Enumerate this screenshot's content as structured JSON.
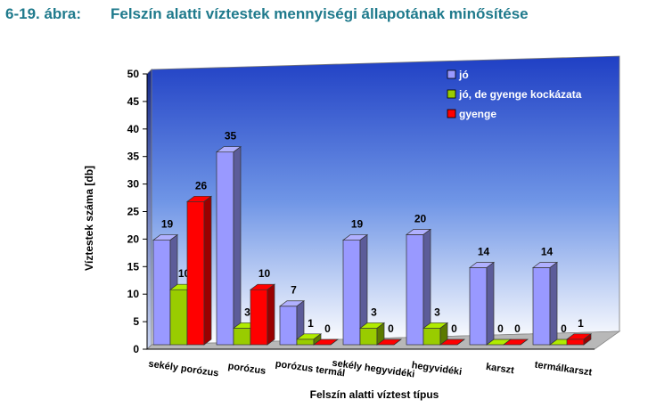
{
  "figure": {
    "number": "6-19. ábra:",
    "title": "Felszín alatti víztestek mennyiségi állapotának minősítése"
  },
  "chart_data": {
    "type": "bar",
    "title": "",
    "xlabel": "Felszín alatti víztest típus",
    "ylabel": "Víztestek száma [db]",
    "ylim": [
      0,
      50
    ],
    "yticks": [
      0,
      5,
      10,
      15,
      20,
      25,
      30,
      35,
      40,
      45,
      50
    ],
    "grid": false,
    "legend_position": "top-right",
    "categories": [
      "sekély porózus",
      "porózus",
      "porózus termál",
      "sekély hegyvidéki",
      "hegyvidéki",
      "karszt",
      "termálkarszt"
    ],
    "series": [
      {
        "name": "jó",
        "color": "#9999ff",
        "values": [
          19,
          35,
          7,
          19,
          20,
          14,
          14
        ]
      },
      {
        "name": "jó, de gyenge kockázata",
        "color": "#99cc00",
        "values": [
          10,
          3,
          1,
          3,
          3,
          0,
          0
        ]
      },
      {
        "name": "gyenge",
        "color": "#ff0000",
        "values": [
          26,
          10,
          0,
          0,
          0,
          0,
          1
        ]
      }
    ]
  }
}
